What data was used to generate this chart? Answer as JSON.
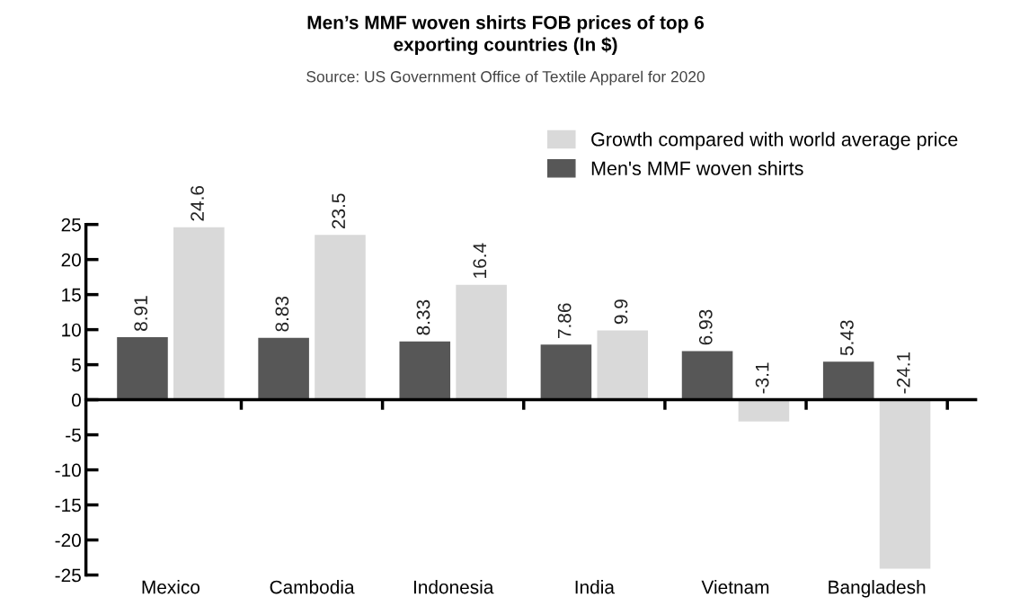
{
  "chart_data": {
    "type": "bar",
    "title": "Men’s MMF woven shirts FOB prices of top 6\nexporting countries (In $)",
    "subtitle": "Source: US Government Office of Textile Apparel for 2020",
    "categories": [
      "Mexico",
      "Cambodia",
      "Indonesia",
      "India",
      "Vietnam",
      "Bangladesh"
    ],
    "series": [
      {
        "name": "Men's MMF woven shirts",
        "color": "#575757",
        "values": [
          8.91,
          8.83,
          8.33,
          7.86,
          6.93,
          5.43
        ]
      },
      {
        "name": "Growth compared with world average price",
        "color": "#d9d9d9",
        "values": [
          24.6,
          23.5,
          16.4,
          9.9,
          -3.1,
          -24.1
        ]
      }
    ],
    "ylim": [
      -25,
      25
    ],
    "yticks": [
      -25,
      -20,
      -15,
      -10,
      -5,
      0,
      5,
      10,
      15,
      20,
      25
    ],
    "data_labels": true,
    "legend": "top right"
  }
}
